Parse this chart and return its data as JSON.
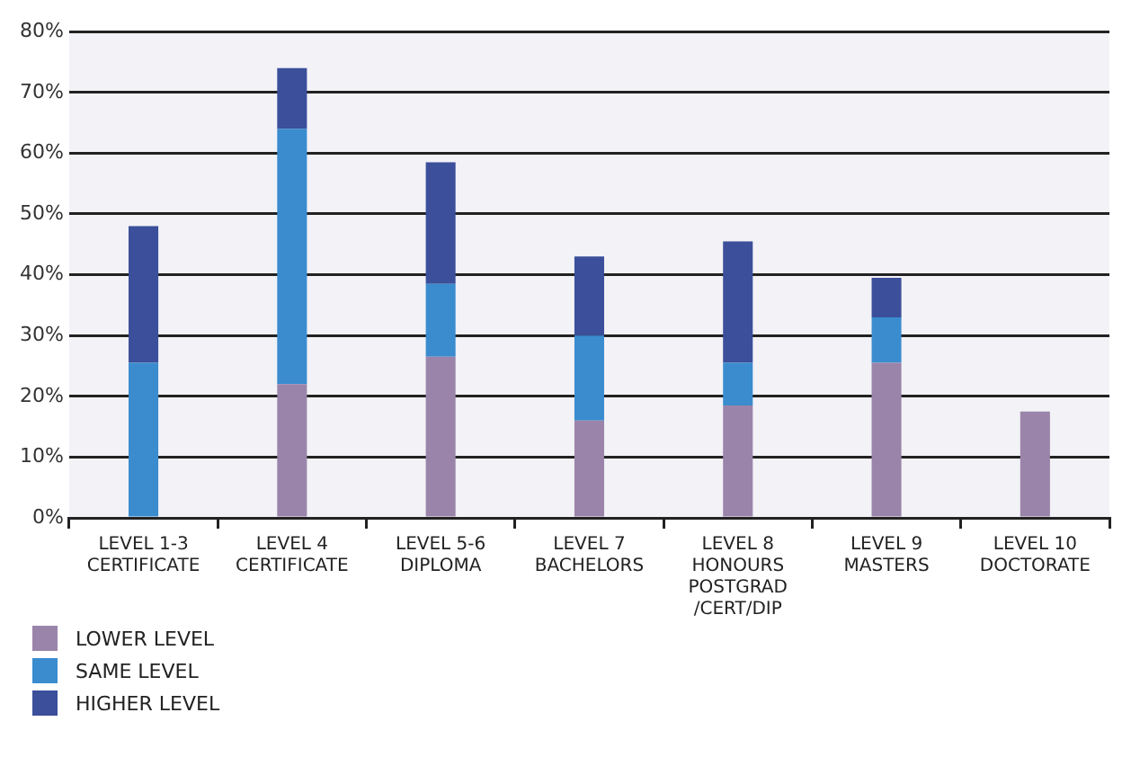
{
  "chart_data": {
    "type": "bar",
    "stacked": true,
    "categories": [
      "LEVEL 1-3\nCERTIFICATE",
      "LEVEL 4\nCERTIFICATE",
      "LEVEL 5-6\nDIPLOMA",
      "LEVEL 7\nBACHELORS",
      "LEVEL 8\nHONOURS\nPOSTGRAD\n/CERT/DIP",
      "LEVEL 9\nMASTERS",
      "LEVEL 10\nDOCTORATE"
    ],
    "series": [
      {
        "name": "LOWER LEVEL",
        "color": "#9b84aa",
        "values": [
          0,
          22,
          26.5,
          16,
          18.5,
          25.5,
          17.5
        ]
      },
      {
        "name": "SAME LEVEL",
        "color": "#3a8ccf",
        "values": [
          25.5,
          42,
          12,
          14,
          7,
          7.5,
          0
        ]
      },
      {
        "name": "HIGHER LEVEL",
        "color": "#3b4f9a",
        "values": [
          22.5,
          10,
          20,
          13,
          20,
          6.5,
          0
        ]
      }
    ],
    "ylim": [
      0,
      80
    ],
    "yticks": [
      {
        "value": 0,
        "label": "0%"
      },
      {
        "value": 10,
        "label": "10%"
      },
      {
        "value": 20,
        "label": "20%"
      },
      {
        "value": 30,
        "label": "30%"
      },
      {
        "value": 40,
        "label": "40%"
      },
      {
        "value": 50,
        "label": "50%"
      },
      {
        "value": 60,
        "label": "60%"
      },
      {
        "value": 70,
        "label": "70%"
      },
      {
        "value": 80,
        "label": "80%"
      }
    ],
    "grid": "y",
    "legend": "bottom left"
  }
}
